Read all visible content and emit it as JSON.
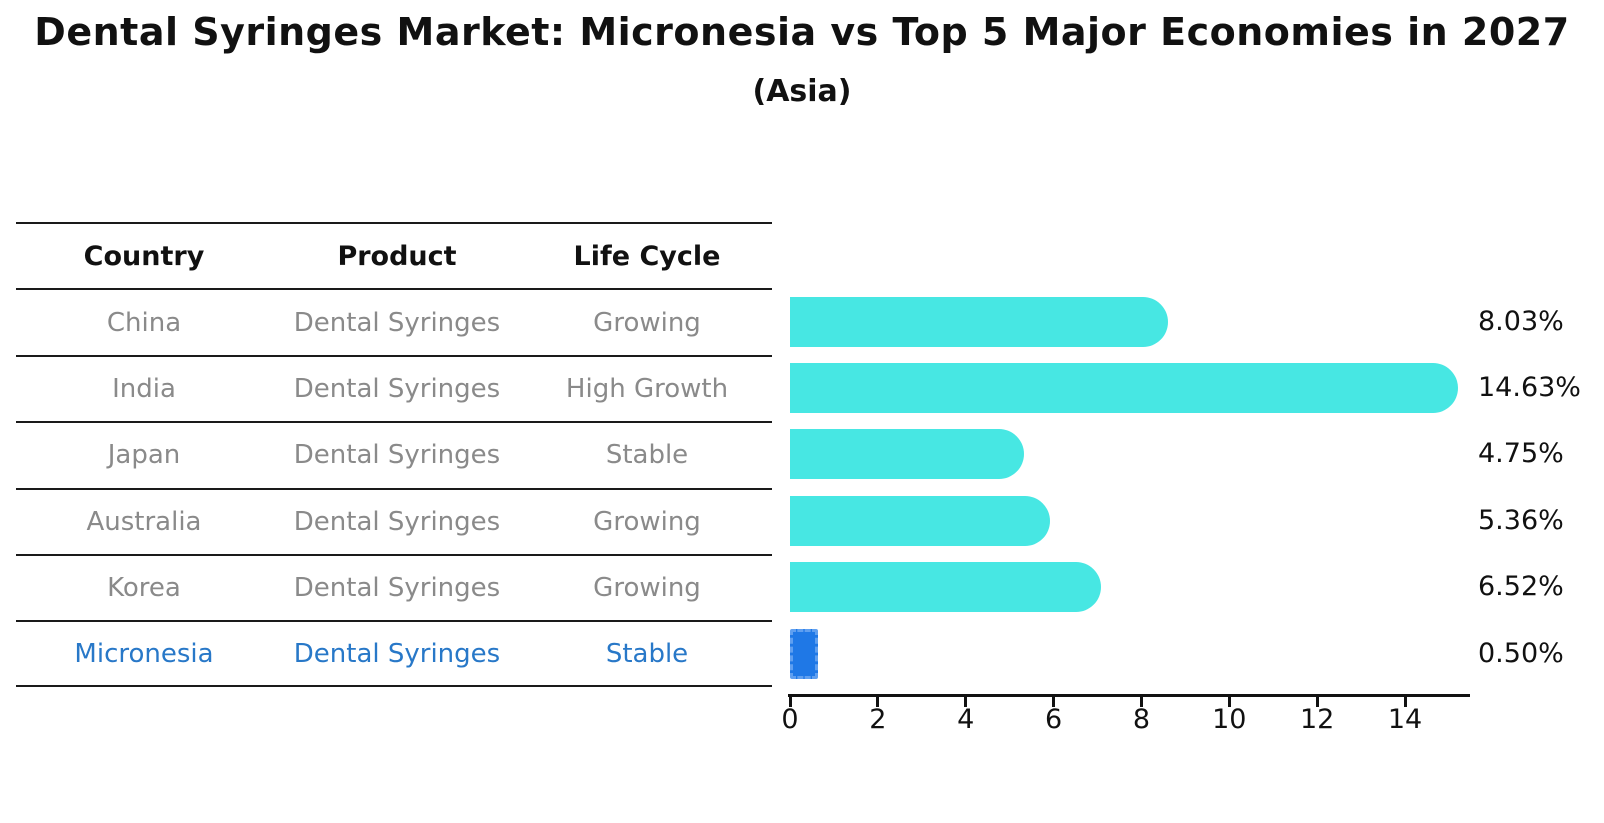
{
  "header": {
    "title": "Dental Syringes Market: Micronesia vs Top 5 Major Economies in 2027",
    "subtitle": "(Asia)"
  },
  "table": {
    "columns": [
      "Country",
      "Product",
      "Life Cycle"
    ],
    "rows": [
      {
        "country": "China",
        "product": "Dental Syringes",
        "life_cycle": "Growing",
        "highlight": false
      },
      {
        "country": "India",
        "product": "Dental Syringes",
        "life_cycle": "High Growth",
        "highlight": false
      },
      {
        "country": "Japan",
        "product": "Dental Syringes",
        "life_cycle": "Stable",
        "highlight": false
      },
      {
        "country": "Australia",
        "product": "Dental Syringes",
        "life_cycle": "Growing",
        "highlight": false
      },
      {
        "country": "Korea",
        "product": "Dental Syringes",
        "life_cycle": "Growing",
        "highlight": false
      },
      {
        "country": "Micronesia",
        "product": "Dental Syringes",
        "life_cycle": "Stable",
        "highlight": true
      }
    ]
  },
  "chart_data": {
    "type": "bar",
    "orientation": "horizontal",
    "title": "Dental Syringes Market: Micronesia vs Top 5 Major Economies in 2027",
    "subtitle": "(Asia)",
    "categories": [
      "China",
      "India",
      "Japan",
      "Australia",
      "Korea",
      "Micronesia"
    ],
    "values": [
      8.03,
      14.63,
      4.75,
      5.36,
      6.52,
      0.5
    ],
    "value_labels": [
      "8.03%",
      "14.63%",
      "4.75%",
      "5.36%",
      "6.52%",
      "0.50%"
    ],
    "highlight_index": 5,
    "xlabel": "",
    "ylabel": "",
    "xlim": [
      0,
      15.5
    ],
    "xticks": [
      0,
      2,
      4,
      6,
      8,
      10,
      12,
      14
    ],
    "grid": false,
    "legend": false
  },
  "colors": {
    "bar": "#47E7E3",
    "highlight_bar": "#1F78E6",
    "highlight_bar_border": "#5F9FF0",
    "table_text": "#8A8A8A",
    "highlight_text": "#2878C8",
    "axis": "#111111",
    "title_text": "#111111"
  }
}
